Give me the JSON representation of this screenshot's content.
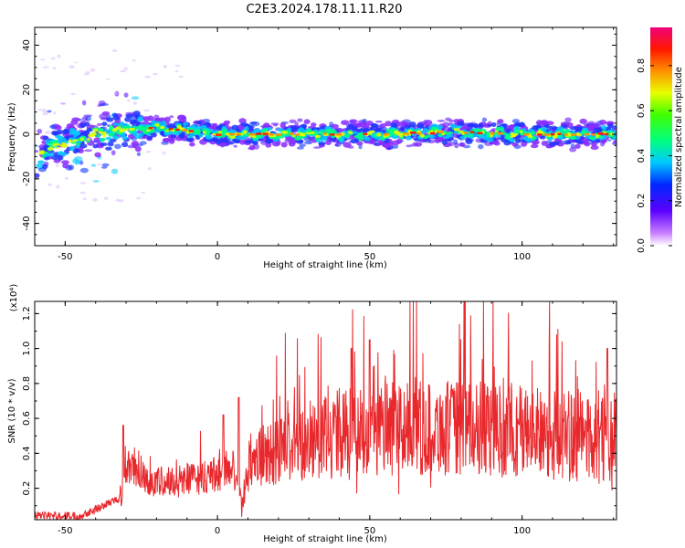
{
  "figure": {
    "title": "C2E3.2024.178.11.11.R20"
  },
  "chart_data": [
    {
      "type": "heatmap",
      "name": "spectrogram",
      "xlabel": "Height of straight line (km)",
      "ylabel": "Frequency (Hz)",
      "xlim": [
        -60,
        131
      ],
      "ylim": [
        -50,
        48
      ],
      "xticks": [
        -50,
        0,
        50,
        100
      ],
      "yticks": [
        40,
        20,
        0,
        -20,
        -40
      ],
      "description_of_ridge": [
        {
          "x": -58,
          "f": -8
        },
        {
          "x": -50,
          "f": -4
        },
        {
          "x": -45,
          "f": -2
        },
        {
          "x": -40,
          "f": 0
        },
        {
          "x": -35,
          "f": 1
        },
        {
          "x": -30,
          "f": 2
        },
        {
          "x": -20,
          "f": 3
        },
        {
          "x": -10,
          "f": 2
        },
        {
          "x": 0,
          "f": 0
        },
        {
          "x": 20,
          "f": 0
        },
        {
          "x": 50,
          "f": 0
        },
        {
          "x": 80,
          "f": 1
        },
        {
          "x": 100,
          "f": 0
        },
        {
          "x": 131,
          "f": 0
        }
      ],
      "colorbar": {
        "label": "Normalized spectral amplitude",
        "ticks": [
          "0.0",
          "0.2",
          "0.4",
          "0.6",
          "0.8"
        ],
        "range": [
          0,
          0.97
        ]
      }
    },
    {
      "type": "line",
      "name": "snr",
      "xlabel": "Height of straight line (km)",
      "ylabel": "SNR (10 * v/v)",
      "yscale_label": "(x10⁴)",
      "color": "#e8282c",
      "xlim": [
        -60,
        131
      ],
      "ylim": [
        0.02,
        1.27
      ],
      "xticks": [
        -50,
        0,
        50,
        100
      ],
      "yticks": [
        "0.2",
        "0.4",
        "0.6",
        "0.8",
        "1.0",
        "1.2"
      ],
      "trend": [
        {
          "x": -60,
          "y": 0.04
        },
        {
          "x": -45,
          "y": 0.04
        },
        {
          "x": -40,
          "y": 0.08
        },
        {
          "x": -32,
          "y": 0.14
        },
        {
          "x": -30,
          "y": 0.32
        },
        {
          "x": -20,
          "y": 0.22
        },
        {
          "x": 0,
          "y": 0.26
        },
        {
          "x": 5,
          "y": 0.32
        },
        {
          "x": 8,
          "y": 0.08
        },
        {
          "x": 10,
          "y": 0.32
        },
        {
          "x": 20,
          "y": 0.4
        },
        {
          "x": 40,
          "y": 0.5
        },
        {
          "x": 80,
          "y": 0.52
        },
        {
          "x": 131,
          "y": 0.46
        }
      ],
      "peaks": [
        {
          "x": -31,
          "y": 0.56
        },
        {
          "x": 2,
          "y": 0.62
        },
        {
          "x": 7,
          "y": 0.72
        },
        {
          "x": 44,
          "y": 1.0
        },
        {
          "x": 50,
          "y": 1.05
        },
        {
          "x": 81,
          "y": 1.27
        },
        {
          "x": 128,
          "y": 1.0
        }
      ]
    }
  ]
}
